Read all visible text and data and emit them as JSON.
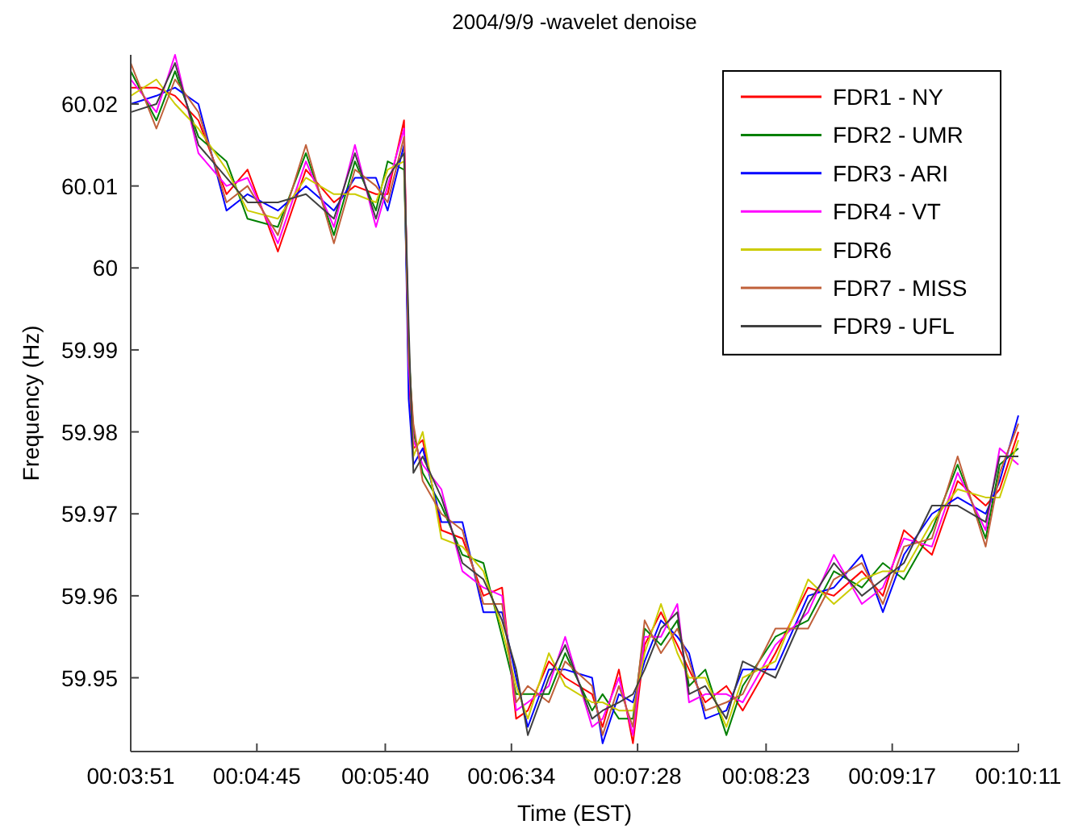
{
  "chart_data": {
    "type": "line",
    "title": "2004/9/9 -wavelet denoise",
    "xlabel": "Time (EST)",
    "ylabel": "Frequency (Hz)",
    "x": [
      0.06417,
      0.06722,
      0.06944,
      0.07222,
      0.07556,
      0.07806,
      0.08167,
      0.085,
      0.08833,
      0.09083,
      0.09333,
      0.09472,
      0.09667,
      0.09722,
      0.09778,
      0.09889,
      0.10111,
      0.10361,
      0.10611,
      0.10833,
      0.11,
      0.11139,
      0.11389,
      0.11583,
      0.11903,
      0.12028,
      0.12222,
      0.12389,
      0.12528,
      0.12722,
      0.12917,
      0.13056,
      0.1325,
      0.135,
      0.13694,
      0.14083,
      0.14472,
      0.14778,
      0.15111,
      0.15361,
      0.15611,
      0.15944,
      0.1625,
      0.16583,
      0.1675,
      0.16972
    ],
    "series": [
      {
        "name": "FDR1 - NY",
        "color": "#ff0000",
        "values": [
          60.022,
          60.022,
          60.021,
          60.018,
          60.009,
          60.012,
          60.002,
          60.012,
          60.008,
          60.01,
          60.009,
          60.009,
          60.018,
          59.987,
          59.978,
          59.979,
          59.968,
          59.967,
          59.96,
          59.961,
          59.945,
          59.946,
          59.952,
          59.95,
          59.948,
          59.944,
          59.951,
          59.942,
          59.954,
          59.958,
          59.954,
          59.951,
          59.947,
          59.949,
          59.946,
          59.953,
          59.961,
          59.96,
          59.963,
          59.96,
          59.968,
          59.965,
          59.974,
          59.971,
          59.973,
          59.98
        ]
      },
      {
        "name": "FDR2 - UMR",
        "color": "#008000",
        "values": [
          60.024,
          60.018,
          60.024,
          60.016,
          60.013,
          60.006,
          60.005,
          60.014,
          60.004,
          60.013,
          60.007,
          60.013,
          60.012,
          59.99,
          59.98,
          59.975,
          59.971,
          59.965,
          59.964,
          59.955,
          59.948,
          59.948,
          59.948,
          59.953,
          59.946,
          59.948,
          59.945,
          59.945,
          59.956,
          59.954,
          59.957,
          59.949,
          59.951,
          59.943,
          59.949,
          59.955,
          59.957,
          59.963,
          59.961,
          59.964,
          59.962,
          59.968,
          59.976,
          59.967,
          59.976,
          59.978
        ]
      },
      {
        "name": "FDR3 - ARI",
        "color": "#0000ff",
        "values": [
          60.02,
          60.021,
          60.022,
          60.02,
          60.007,
          60.009,
          60.007,
          60.01,
          60.007,
          60.011,
          60.011,
          60.007,
          60.015,
          59.984,
          59.976,
          59.978,
          59.969,
          59.969,
          59.958,
          59.958,
          59.95,
          59.944,
          59.951,
          59.951,
          59.95,
          59.942,
          59.948,
          59.947,
          59.952,
          59.957,
          59.955,
          59.953,
          59.945,
          59.946,
          59.951,
          59.951,
          59.96,
          59.961,
          59.965,
          59.958,
          59.965,
          59.97,
          59.972,
          59.97,
          59.974,
          59.982
        ]
      },
      {
        "name": "FDR4 - VT",
        "color": "#ff00ff",
        "values": [
          60.023,
          60.019,
          60.026,
          60.014,
          60.01,
          60.011,
          60.003,
          60.013,
          60.005,
          60.015,
          60.005,
          60.01,
          60.017,
          59.988,
          59.979,
          59.976,
          59.973,
          59.963,
          59.961,
          59.96,
          59.946,
          59.947,
          59.949,
          59.955,
          59.944,
          59.945,
          59.95,
          59.943,
          59.955,
          59.955,
          59.959,
          59.947,
          59.948,
          59.948,
          59.947,
          59.954,
          59.958,
          59.965,
          59.959,
          59.961,
          59.967,
          59.966,
          59.975,
          59.968,
          59.978,
          59.976
        ]
      },
      {
        "name": "FDR6",
        "color": "#cccc00",
        "values": [
          60.021,
          60.023,
          60.02,
          60.017,
          60.012,
          60.007,
          60.006,
          60.011,
          60.009,
          60.009,
          60.008,
          60.012,
          60.013,
          59.991,
          59.977,
          59.98,
          59.967,
          59.966,
          59.963,
          59.956,
          59.949,
          59.945,
          59.953,
          59.949,
          59.947,
          59.947,
          59.946,
          59.946,
          59.953,
          59.959,
          59.953,
          59.95,
          59.95,
          59.944,
          59.95,
          59.952,
          59.962,
          59.959,
          59.962,
          59.963,
          59.963,
          59.969,
          59.973,
          59.972,
          59.972,
          59.979
        ]
      },
      {
        "name": "FDR7 - MISS",
        "color": "#c0603a",
        "values": [
          60.025,
          60.017,
          60.023,
          60.019,
          60.008,
          60.01,
          60.004,
          60.015,
          60.003,
          60.012,
          60.01,
          60.008,
          60.016,
          59.989,
          59.981,
          59.974,
          59.97,
          59.968,
          59.959,
          59.959,
          59.947,
          59.949,
          59.947,
          59.952,
          59.949,
          59.943,
          59.949,
          59.944,
          59.957,
          59.953,
          59.956,
          59.952,
          59.946,
          59.947,
          59.948,
          59.956,
          59.956,
          59.962,
          59.964,
          59.959,
          59.966,
          59.967,
          59.977,
          59.966,
          59.975,
          59.981
        ]
      },
      {
        "name": "FDR9 - UFL",
        "color": "#404040",
        "values": [
          60.019,
          60.02,
          60.025,
          60.015,
          60.011,
          60.008,
          60.008,
          60.009,
          60.006,
          60.014,
          60.006,
          60.011,
          60.014,
          59.993,
          59.975,
          59.977,
          59.972,
          59.964,
          59.962,
          59.957,
          59.951,
          59.943,
          59.95,
          59.954,
          59.945,
          59.946,
          59.947,
          59.948,
          59.951,
          59.956,
          59.958,
          59.948,
          59.949,
          59.945,
          59.952,
          59.95,
          59.959,
          59.964,
          59.96,
          59.962,
          59.964,
          59.971,
          59.971,
          59.969,
          59.977,
          59.977
        ]
      }
    ],
    "xlim": [
      0.06417,
      0.16972
    ],
    "xticks": [
      {
        "value": 0.06417,
        "label": "00:03:51"
      },
      {
        "value": 0.07917,
        "label": "00:04:45"
      },
      {
        "value": 0.09444,
        "label": "00:05:40"
      },
      {
        "value": 0.10944,
        "label": "00:06:34"
      },
      {
        "value": 0.12444,
        "label": "00:07:28"
      },
      {
        "value": 0.13972,
        "label": "00:08:23"
      },
      {
        "value": 0.15472,
        "label": "00:09:17"
      },
      {
        "value": 0.16972,
        "label": "00:10:11"
      }
    ],
    "ylim": [
      59.941,
      60.026
    ],
    "yticks": [
      59.95,
      59.96,
      59.97,
      59.98,
      59.99,
      {
        "value": 60,
        "label": "60"
      },
      60.01,
      60.02
    ],
    "legend": "top right",
    "grid": false,
    "marker": "none",
    "line_style": "solid"
  }
}
